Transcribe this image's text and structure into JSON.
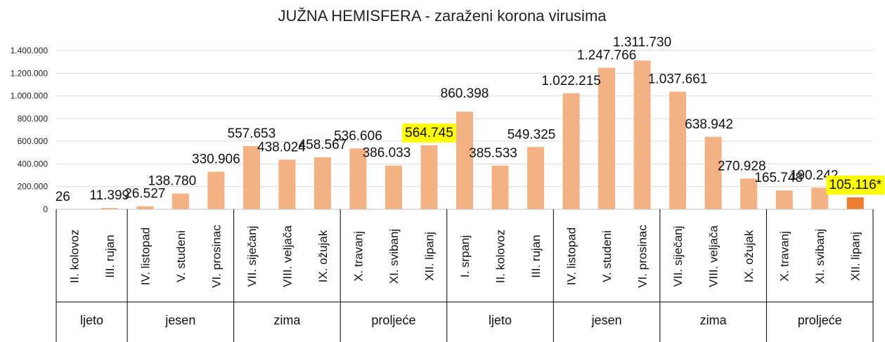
{
  "chart_data": {
    "type": "bar",
    "title": "JUŽNA HEMISFERA - zaraženi korona virusima",
    "ylim": [
      0,
      1400000
    ],
    "yticks": [
      "0",
      "200.000",
      "400.000",
      "600.000",
      "800.000",
      "1.000.000",
      "1.200.000",
      "1.400.000"
    ],
    "categories": [
      "II. kolovoz",
      "III. rujan",
      "IV. listopad",
      "V. studeni",
      "VI. prosinac",
      "VII. siječanj",
      "VIII. veljača",
      "IX. ožujak",
      "X. travanj",
      "XI. svibanj",
      "XII. lipanj",
      "I. srpanj",
      "II. kolovoz",
      "III. rujan",
      "IV. listopad",
      "V. studeni",
      "VI. prosinac",
      "VII. siječanj",
      "VIII. veljača",
      "IX. ožujak",
      "X. travanj",
      "XI. svibanj",
      "XII. lipanj"
    ],
    "values": [
      26,
      11399,
      26527,
      138780,
      330906,
      557653,
      438024,
      458567,
      536606,
      386033,
      564745,
      860398,
      385533,
      549325,
      1022215,
      1247766,
      1311730,
      1037661,
      638942,
      270928,
      165748,
      190242,
      105116
    ],
    "data_labels": [
      "26",
      "11.399",
      "26.527",
      "138.780",
      "330.906",
      "557.653",
      "438.024",
      "458.567",
      "536.606",
      "386.033",
      "564.745",
      "860.398",
      "385.533",
      "549.325",
      "1.022.215",
      "1.247.766",
      "1.311.730",
      "1.037.661",
      "638.942",
      "270.928",
      "165.748",
      "190.242",
      "105.116*"
    ],
    "highlighted_labels": [
      10,
      22
    ],
    "emphasized_bar": 22,
    "seasons": [
      {
        "name": "ljeto",
        "count": 2
      },
      {
        "name": "jesen",
        "count": 3
      },
      {
        "name": "zima",
        "count": 3
      },
      {
        "name": "proljeće",
        "count": 3
      },
      {
        "name": "ljeto",
        "count": 3
      },
      {
        "name": "jesen",
        "count": 3
      },
      {
        "name": "zima",
        "count": 3
      },
      {
        "name": "proljeće",
        "count": 3
      }
    ],
    "colors": {
      "bar": "#F4B183",
      "bar_emphasized": "#ED7D31",
      "label_highlight": "#FFFF00",
      "grid": "#D9D9D9"
    },
    "grid": true,
    "legend": "none"
  }
}
